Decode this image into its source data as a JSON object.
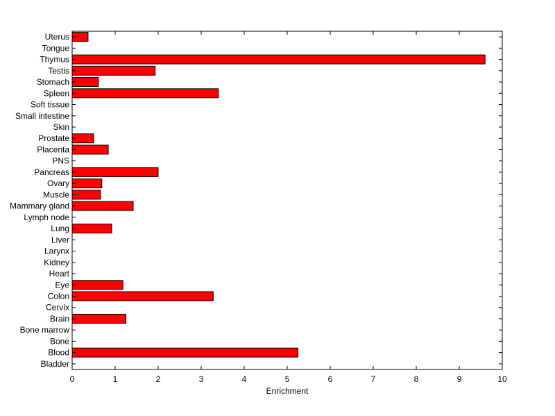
{
  "chart_data": {
    "type": "bar",
    "orientation": "horizontal",
    "title": "",
    "xlabel": "Enrichment",
    "ylabel": "",
    "xlim": [
      0,
      10
    ],
    "xticks": [
      0,
      1,
      2,
      3,
      4,
      5,
      6,
      7,
      8,
      9,
      10
    ],
    "grid": false,
    "bar_color": "#ff0000",
    "bar_edge_color": "#000000",
    "categories": [
      "Bladder",
      "Blood",
      "Bone",
      "Bone marrow",
      "Brain",
      "Cervix",
      "Colon",
      "Eye",
      "Heart",
      "Kidney",
      "Larynx",
      "Liver",
      "Lung",
      "Lymph node",
      "Mammary gland",
      "Muscle",
      "Ovary",
      "Pancreas",
      "PNS",
      "Placenta",
      "Prostate",
      "Skin",
      "Small intestine",
      "Soft tissue",
      "Spleen",
      "Stomach",
      "Testis",
      "Thymus",
      "Tongue",
      "Uterus"
    ],
    "values": [
      0,
      5.25,
      0,
      0,
      1.25,
      0,
      3.28,
      1.18,
      0,
      0,
      0,
      0,
      0.92,
      0,
      1.42,
      0.66,
      0.69,
      2.0,
      0,
      0.84,
      0.5,
      0,
      0,
      0,
      3.4,
      0.61,
      1.93,
      9.6,
      0,
      0.37
    ]
  }
}
